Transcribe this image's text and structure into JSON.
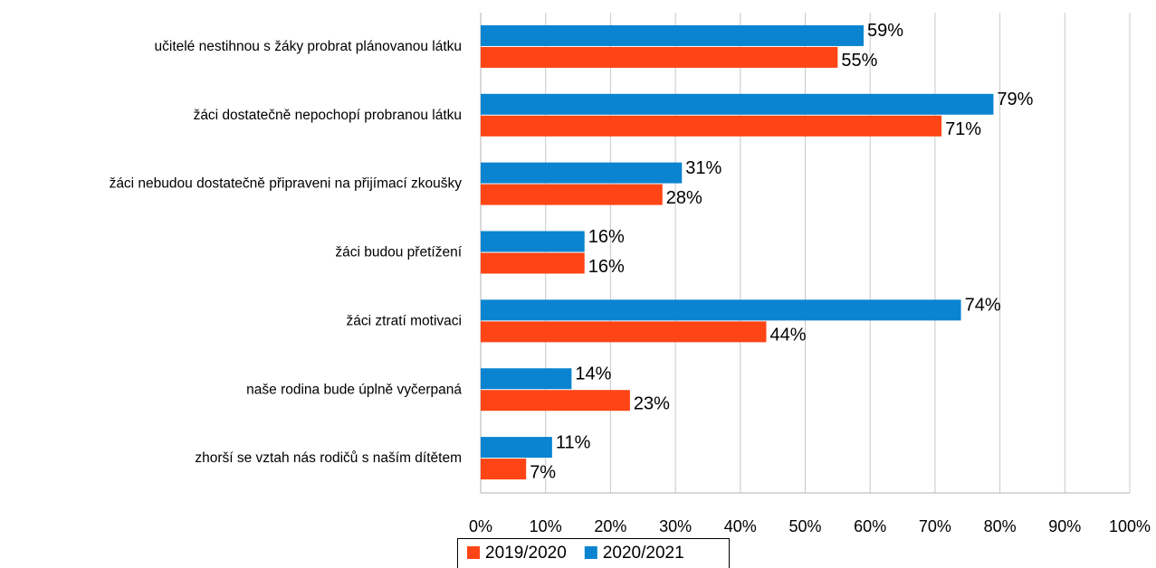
{
  "chart_data": {
    "type": "bar",
    "orientation": "horizontal",
    "categories": [
      "učitelé nestihnou s žáky probrat plánovanou látku",
      "žáci dostatečně nepochopí probranou látku",
      "žáci nebudou dostatečně připraveni na přijímací zkoušky",
      "žáci budou přetížení",
      "žáci ztratí motivaci",
      "naše rodina bude úplně vyčerpaná",
      "zhorší se vztah nás rodičů s naším dítětem"
    ],
    "series": [
      {
        "name": "2019/2020",
        "color": "#ff4515",
        "values": [
          55,
          71,
          28,
          16,
          44,
          23,
          7
        ],
        "value_labels": [
          "55%",
          "71%",
          "28%",
          "16%",
          "44%",
          "23%",
          "7%"
        ]
      },
      {
        "name": "2020/2021",
        "color": "#0a84d0",
        "values": [
          59,
          79,
          31,
          16,
          74,
          14,
          11
        ],
        "value_labels": [
          "59%",
          "79%",
          "31%",
          "16%",
          "74%",
          "14%",
          "11%"
        ]
      }
    ],
    "xlim": [
      0,
      100
    ],
    "xticks": [
      {
        "value": 0,
        "label": "0%"
      },
      {
        "value": 10,
        "label": "10%"
      },
      {
        "value": 20,
        "label": "20%"
      },
      {
        "value": 30,
        "label": "30%"
      },
      {
        "value": 40,
        "label": "40%"
      },
      {
        "value": 50,
        "label": "50%"
      },
      {
        "value": 60,
        "label": "60%"
      },
      {
        "value": 70,
        "label": "70%"
      },
      {
        "value": 80,
        "label": "80%"
      },
      {
        "value": 90,
        "label": "90%"
      },
      {
        "value": 100,
        "label": "100%"
      }
    ],
    "grid": true,
    "legend": "bottom"
  }
}
